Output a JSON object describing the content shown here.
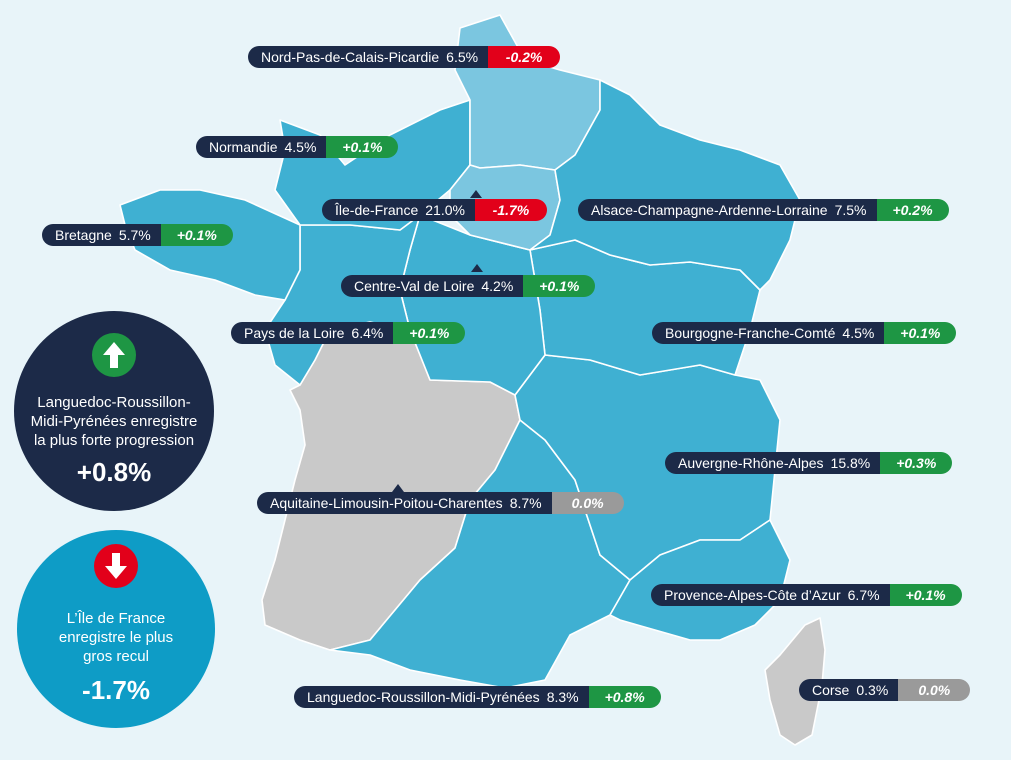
{
  "colors": {
    "region_fill": "#3fb0d2",
    "region_light": "#7bc6e0",
    "region_grey": "#c9c9c9",
    "pill_dark": "#1c2a48",
    "positive": "#1e9644",
    "negative": "#e2001a",
    "neutral": "#9a9a9a",
    "circle_dark": "#1c2a48",
    "circle_blue": "#0e9cc6"
  },
  "regions": [
    {
      "name": "Nord-Pas-de-Calais-Picardie",
      "pct": "6.5%",
      "change": "-0.2%",
      "trend": "neg"
    },
    {
      "name": "Normandie",
      "pct": "4.5%",
      "change": "+0.1%",
      "trend": "pos"
    },
    {
      "name": "Île-de-France",
      "pct": "21.0%",
      "change": "-1.7%",
      "trend": "neg"
    },
    {
      "name": "Alsace-Champagne-Ardenne-Lorraine",
      "pct": "7.5%",
      "change": "+0.2%",
      "trend": "pos"
    },
    {
      "name": "Bretagne",
      "pct": "5.7%",
      "change": "+0.1%",
      "trend": "pos"
    },
    {
      "name": "Centre-Val de Loire",
      "pct": "4.2%",
      "change": "+0.1%",
      "trend": "pos"
    },
    {
      "name": "Pays de la Loire",
      "pct": "6.4%",
      "change": "+0.1%",
      "trend": "pos"
    },
    {
      "name": "Bourgogne-Franche-Comté",
      "pct": "4.5%",
      "change": "+0.1%",
      "trend": "pos"
    },
    {
      "name": "Auvergne-Rhône-Alpes",
      "pct": "15.8%",
      "change": "+0.3%",
      "trend": "pos"
    },
    {
      "name": "Aquitaine-Limousin-Poitou-Charentes",
      "pct": "8.7%",
      "change": "0.0%",
      "trend": "zero"
    },
    {
      "name": "Provence-Alpes-Côte d’Azur",
      "pct": "6.7%",
      "change": "+0.1%",
      "trend": "pos"
    },
    {
      "name": "Languedoc-Roussillon-Midi-Pyrénées",
      "pct": "8.3%",
      "change": "+0.8%",
      "trend": "pos"
    },
    {
      "name": "Corse",
      "pct": "0.3%",
      "change": "0.0%",
      "trend": "zero"
    }
  ],
  "highlight_up": {
    "line1": "Languedoc-Roussillon-",
    "line2": "Midi-Pyrénées enregistre",
    "line3": "la plus forte progression",
    "value": "+0.8%",
    "icon": "arrow-up-icon"
  },
  "highlight_down": {
    "line1": "L’Île de France",
    "line2": "enregistre le plus",
    "line3": "gros recul",
    "value": "-1.7%",
    "icon": "arrow-down-icon"
  }
}
